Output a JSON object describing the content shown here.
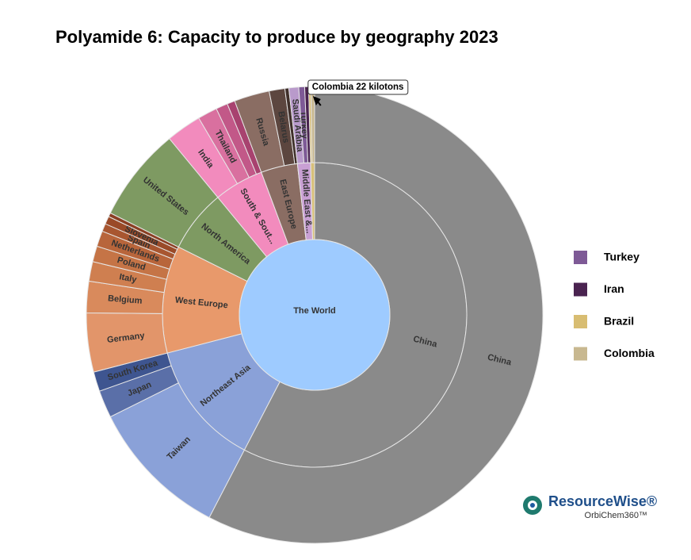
{
  "chart_data": {
    "type": "sunburst",
    "title": "Polyamide 6: Capacity to produce by geography 2023",
    "root": {
      "name": "The World",
      "value": 8640,
      "color": "#9ecbff"
    },
    "regions": [
      {
        "name": "China",
        "value": 4980,
        "color": "#8a8a8a",
        "children": [
          {
            "name": "China",
            "value": 4980,
            "color": "#8a8a8a"
          }
        ]
      },
      {
        "name": "Northeast Asia",
        "value": 1152,
        "color": "#8aa1d8",
        "children": [
          {
            "name": "Taiwan",
            "value": 864,
            "color": "#8aa1d8"
          },
          {
            "name": "Japan",
            "value": 168,
            "color": "#5a6fa8"
          },
          {
            "name": "South Korea",
            "value": 120,
            "color": "#3e5590"
          }
        ]
      },
      {
        "name": "West Europe",
        "value": 984,
        "color": "#e8996b",
        "children": [
          {
            "name": "Germany",
            "value": 360,
            "color": "#e2956a"
          },
          {
            "name": "Belgium",
            "value": 192,
            "color": "#d98a5c"
          },
          {
            "name": "Italy",
            "value": 120,
            "color": "#cf7f50"
          },
          {
            "name": "Poland",
            "value": 96,
            "color": "#c57446"
          },
          {
            "name": "Netherlands",
            "value": 96,
            "color": "#b8653b"
          },
          {
            "name": "Spain",
            "value": 48,
            "color": "#a85630"
          },
          {
            "name": "Slovenia",
            "value": 48,
            "color": "#9a4a28"
          },
          {
            "name": null,
            "value": 24,
            "color": "#8a3f22"
          }
        ]
      },
      {
        "name": "North America",
        "value": 576,
        "color": "#7e9a62",
        "children": [
          {
            "name": "United States",
            "value": 576,
            "color": "#7e9a62"
          }
        ]
      },
      {
        "name": "South & Sout...",
        "value": 456,
        "color": "#f28bbd",
        "children": [
          {
            "name": "India",
            "value": 216,
            "color": "#f28bbd"
          },
          {
            "name": "Thailand",
            "value": 120,
            "color": "#d9709f"
          },
          {
            "name": null,
            "value": 72,
            "color": "#c25888"
          },
          {
            "name": null,
            "value": 48,
            "color": "#a8426f"
          }
        ]
      },
      {
        "name": "East Europe",
        "value": 336,
        "color": "#8a6d63",
        "children": [
          {
            "name": "Russia",
            "value": 216,
            "color": "#8a6d63"
          },
          {
            "name": "Belarus",
            "value": 96,
            "color": "#5c463f"
          },
          {
            "name": null,
            "value": 24,
            "color": "#3f2f2a"
          }
        ]
      },
      {
        "name": "Middle East &...",
        "value": 120,
        "color": "#c9a0d4",
        "children": [
          {
            "name": "Saudi Arabia",
            "value": 60,
            "color": "#b99acb"
          },
          {
            "name": "Turkey",
            "value": 36,
            "color": "#7e5a96",
            "in_legend": true
          },
          {
            "name": "Iran",
            "value": 24,
            "color": "#4a2350",
            "in_legend": true
          }
        ]
      },
      {
        "name": null,
        "value": 36,
        "color": "#d8c07a",
        "children": [
          {
            "name": "Brazil",
            "value": 14,
            "color": "#d8bd72",
            "in_legend": true
          },
          {
            "name": "Colombia",
            "value": 22,
            "color": "#c8b890",
            "in_legend": true
          }
        ]
      }
    ],
    "annotation": "Colombia 22 kilotons",
    "legend_position": "right",
    "logo": {
      "name": "ResourceWise®",
      "sub": "OrbiChem360™"
    }
  }
}
